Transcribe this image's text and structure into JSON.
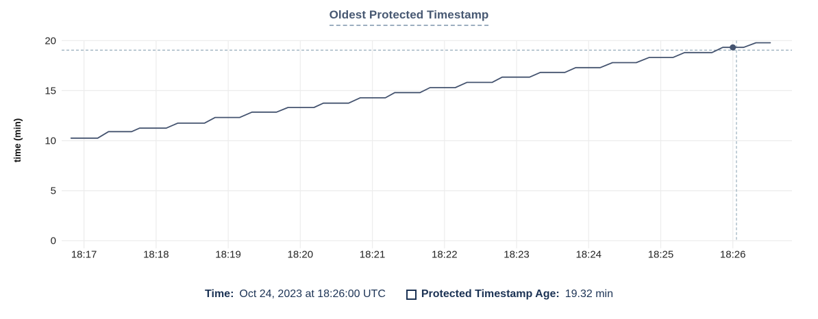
{
  "colors": {
    "title": "#475872",
    "title_underline": "#9badbf",
    "legend_text": "#1b3254",
    "series_line": "#44536f",
    "hover_dot": "#44536f",
    "crosshair": "#9fb3c1",
    "gridline": "#ececec",
    "axis_text": "#242424"
  },
  "legend": {
    "time_label": "Time:",
    "time_value": "Oct 24, 2023 at 18:26:00 UTC",
    "series_label": "Protected Timestamp Age:",
    "series_value": "19.32 min"
  },
  "chart_data": {
    "type": "line",
    "title": "Oldest Protected Timestamp",
    "xlabel": "",
    "ylabel": "time (min)",
    "ylim": [
      0,
      20
    ],
    "yticks": [
      0,
      5,
      10,
      15,
      20
    ],
    "x_unit": "minutes after 18:00 UTC",
    "xlim": [
      16.69,
      26.82
    ],
    "xticks": [
      {
        "t": 17,
        "label": "18:17"
      },
      {
        "t": 18,
        "label": "18:18"
      },
      {
        "t": 19,
        "label": "18:19"
      },
      {
        "t": 20,
        "label": "18:20"
      },
      {
        "t": 21,
        "label": "18:21"
      },
      {
        "t": 22,
        "label": "18:22"
      },
      {
        "t": 23,
        "label": "18:23"
      },
      {
        "t": 24,
        "label": "18:24"
      },
      {
        "t": 25,
        "label": "18:25"
      },
      {
        "t": 26,
        "label": "18:26"
      }
    ],
    "grid": true,
    "legend_position": "bottom",
    "series": [
      {
        "name": "Protected Timestamp Age",
        "unit": "min",
        "points": [
          [
            16.82,
            10.25
          ],
          [
            17.19,
            10.25
          ],
          [
            17.34,
            10.9
          ],
          [
            17.66,
            10.9
          ],
          [
            17.77,
            11.25
          ],
          [
            18.14,
            11.25
          ],
          [
            18.3,
            11.75
          ],
          [
            18.67,
            11.75
          ],
          [
            18.82,
            12.32
          ],
          [
            19.16,
            12.32
          ],
          [
            19.33,
            12.85
          ],
          [
            19.67,
            12.85
          ],
          [
            19.83,
            13.32
          ],
          [
            20.19,
            13.32
          ],
          [
            20.32,
            13.75
          ],
          [
            20.67,
            13.75
          ],
          [
            20.83,
            14.28
          ],
          [
            21.18,
            14.28
          ],
          [
            21.31,
            14.8
          ],
          [
            21.66,
            14.8
          ],
          [
            21.8,
            15.3
          ],
          [
            22.15,
            15.3
          ],
          [
            22.31,
            15.82
          ],
          [
            22.66,
            15.82
          ],
          [
            22.8,
            16.35
          ],
          [
            23.18,
            16.35
          ],
          [
            23.33,
            16.82
          ],
          [
            23.67,
            16.82
          ],
          [
            23.82,
            17.3
          ],
          [
            24.16,
            17.3
          ],
          [
            24.33,
            17.8
          ],
          [
            24.66,
            17.8
          ],
          [
            24.84,
            18.32
          ],
          [
            25.17,
            18.32
          ],
          [
            25.33,
            18.8
          ],
          [
            25.71,
            18.8
          ],
          [
            25.86,
            19.32
          ],
          [
            26.15,
            19.32
          ],
          [
            26.32,
            19.78
          ],
          [
            26.52,
            19.78
          ]
        ]
      }
    ],
    "hover_point": {
      "t": 26.0,
      "v": 19.32,
      "time_label": "Oct 24, 2023 at 18:26:00 UTC",
      "value_label": "19.32 min"
    },
    "crosshair": {
      "t": 26.05,
      "v": 19.04
    }
  }
}
